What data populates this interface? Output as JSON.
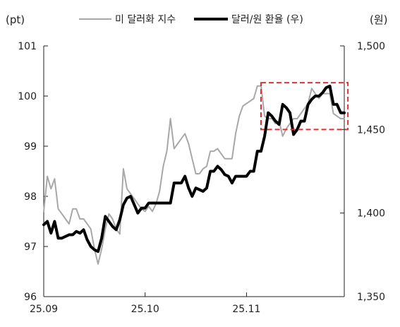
{
  "chart_data": {
    "type": "line",
    "left_unit": "(pt)",
    "right_unit": "(원)",
    "x_ticks": [
      "25.09",
      "25.10",
      "25.11"
    ],
    "xlim": [
      0,
      83
    ],
    "x_tick_positions": [
      0,
      28,
      56
    ],
    "y_left": {
      "ticks": [
        "96",
        "97",
        "98",
        "99",
        "100",
        "101"
      ],
      "lim": [
        96,
        101
      ]
    },
    "y_right": {
      "ticks": [
        "1,350",
        "1,400",
        "1,450",
        "1,500"
      ],
      "lim": [
        1350,
        1500
      ]
    },
    "grid": false,
    "legend_position": "top",
    "highlight_box": {
      "x": [
        60,
        84
      ],
      "y_right": [
        1450,
        1478
      ],
      "color": "#e03030",
      "style": "dashed"
    },
    "series": [
      {
        "name": "미 달러화 지수",
        "axis": "left",
        "color": "#a8a8a8",
        "x": [
          0,
          1,
          2,
          3,
          4,
          5,
          6,
          7,
          8,
          9,
          10,
          11,
          12,
          13,
          14,
          15,
          16,
          17,
          18,
          19,
          20,
          21,
          22,
          23,
          24,
          25,
          26,
          27,
          28,
          29,
          30,
          31,
          32,
          33,
          34,
          35,
          36,
          37,
          38,
          39,
          40,
          41,
          42,
          43,
          44,
          45,
          46,
          47,
          48,
          49,
          50,
          51,
          52,
          53,
          54,
          55,
          56,
          57,
          58,
          59,
          60,
          61,
          62,
          63,
          64,
          65,
          66,
          67,
          68,
          69,
          70,
          71,
          72,
          73,
          74,
          75,
          76,
          77,
          78,
          79,
          80,
          81,
          82,
          83
        ],
        "values": [
          97.7,
          98.4,
          98.15,
          98.35,
          97.75,
          97.65,
          97.55,
          97.45,
          97.75,
          97.75,
          97.55,
          97.55,
          97.45,
          97.35,
          96.95,
          96.65,
          96.95,
          97.35,
          97.65,
          97.55,
          97.35,
          97.25,
          98.55,
          98.15,
          98.05,
          97.95,
          97.85,
          97.75,
          97.7,
          97.8,
          97.7,
          97.85,
          98.1,
          98.6,
          98.9,
          99.55,
          98.95,
          99.05,
          99.15,
          99.25,
          99.05,
          98.75,
          98.45,
          98.45,
          98.55,
          98.6,
          98.9,
          98.9,
          98.95,
          98.85,
          98.75,
          98.75,
          98.75,
          99.25,
          99.6,
          99.8,
          99.85,
          99.9,
          99.95,
          100.2,
          100.2,
          99.6,
          99.55,
          99.55,
          99.45,
          99.5,
          99.2,
          99.35,
          99.45,
          99.55,
          99.55,
          99.65,
          99.75,
          99.85,
          100.15,
          100.05,
          99.95,
          100.05,
          100.05,
          100.05,
          99.65,
          99.6,
          99.55,
          99.55
        ]
      },
      {
        "name": "달러/원 환율 (우)",
        "axis": "right",
        "color": "#000000",
        "x": [
          0,
          1,
          2,
          3,
          4,
          5,
          6,
          7,
          8,
          9,
          10,
          11,
          12,
          13,
          14,
          15,
          16,
          17,
          18,
          19,
          20,
          21,
          22,
          23,
          24,
          25,
          26,
          27,
          28,
          29,
          30,
          31,
          32,
          33,
          34,
          35,
          36,
          37,
          38,
          39,
          40,
          41,
          42,
          43,
          44,
          45,
          46,
          47,
          48,
          49,
          50,
          51,
          52,
          53,
          54,
          55,
          56,
          57,
          58,
          59,
          60,
          61,
          62,
          63,
          64,
          65,
          66,
          67,
          68,
          69,
          70,
          71,
          72,
          73,
          74,
          75,
          76,
          77,
          78,
          79,
          80,
          81,
          82,
          83
        ],
        "values": [
          1393,
          1395,
          1388,
          1395,
          1385,
          1385,
          1386,
          1387,
          1387,
          1389,
          1388,
          1390,
          1384,
          1380,
          1378,
          1377,
          1385,
          1398,
          1395,
          1392,
          1390,
          1396,
          1405,
          1409,
          1410,
          1405,
          1400,
          1403,
          1403,
          1406,
          1406,
          1406,
          1406,
          1406,
          1406,
          1406,
          1418,
          1418,
          1418,
          1422,
          1415,
          1410,
          1415,
          1414,
          1413,
          1415,
          1425,
          1425,
          1428,
          1426,
          1423,
          1422,
          1418,
          1422,
          1422,
          1422,
          1422,
          1425,
          1425,
          1437,
          1437,
          1446,
          1460,
          1458,
          1455,
          1453,
          1465,
          1463,
          1460,
          1447,
          1450,
          1455,
          1455,
          1465,
          1468,
          1470,
          1470,
          1472,
          1475,
          1476,
          1465,
          1465,
          1460,
          1460
        ]
      }
    ]
  }
}
